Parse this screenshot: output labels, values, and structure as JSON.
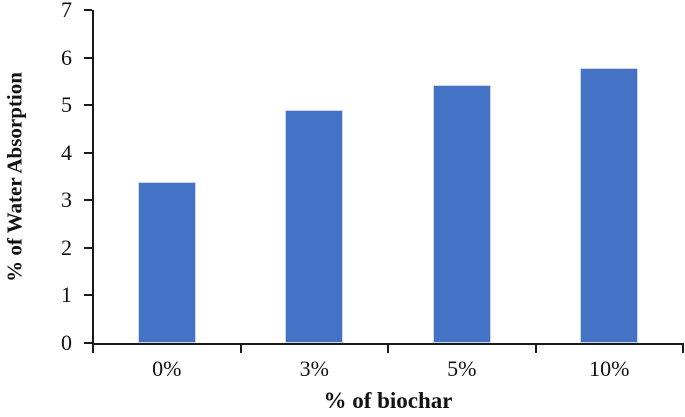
{
  "chart_data": {
    "type": "bar",
    "title": "",
    "categories": [
      "0%",
      "3%",
      "5%",
      "10%"
    ],
    "values": [
      3.39,
      4.89,
      5.43,
      5.79
    ],
    "xlabel": "% of biochar",
    "ylabel": "% of Water Absorption",
    "ylim": [
      0,
      7
    ],
    "yticks": [
      0,
      1,
      2,
      3,
      4,
      5,
      6,
      7
    ],
    "grid": false,
    "legend": "none",
    "bar_color": "#4472C4",
    "bar_border_color": "#ccd7eb",
    "axis_color": "#1a1a1a",
    "text_color": "#111111"
  }
}
